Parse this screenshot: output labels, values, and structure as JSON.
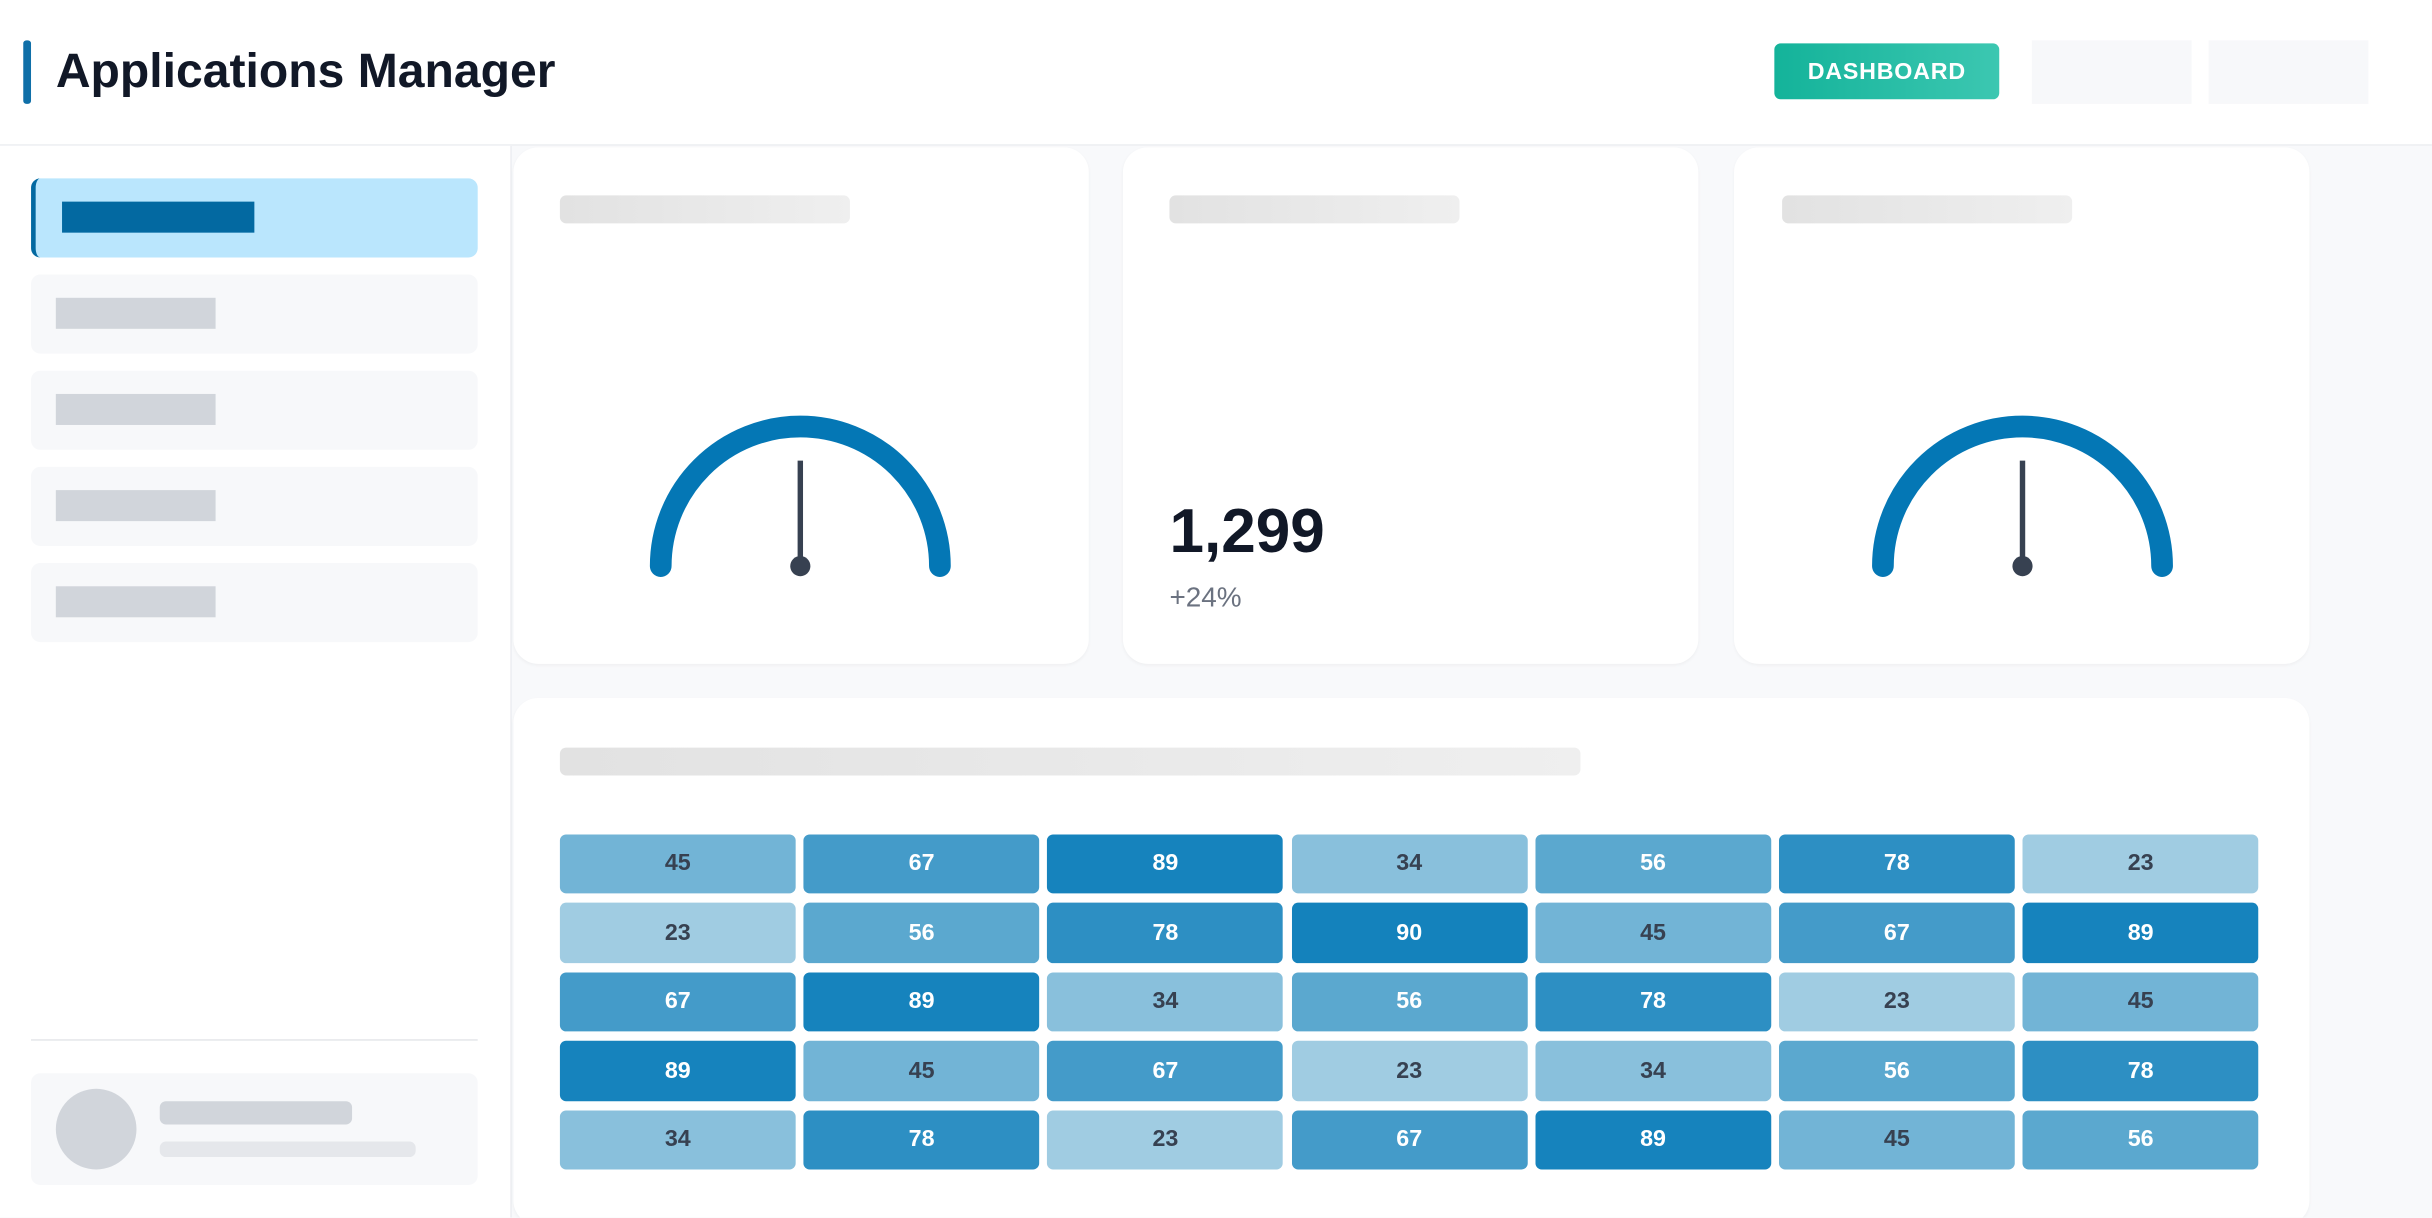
{
  "header": {
    "title": "Applications Manager",
    "button": "DASHBOARD"
  },
  "stat": {
    "value": "1,299",
    "change": "+24%"
  },
  "heatmap": {
    "rows": [
      [
        45,
        67,
        89,
        34,
        56,
        78,
        23
      ],
      [
        23,
        56,
        78,
        90,
        45,
        67,
        89
      ],
      [
        67,
        89,
        34,
        56,
        78,
        23,
        45
      ],
      [
        89,
        45,
        67,
        23,
        34,
        56,
        78
      ],
      [
        34,
        78,
        23,
        67,
        89,
        45,
        56
      ]
    ]
  }
}
